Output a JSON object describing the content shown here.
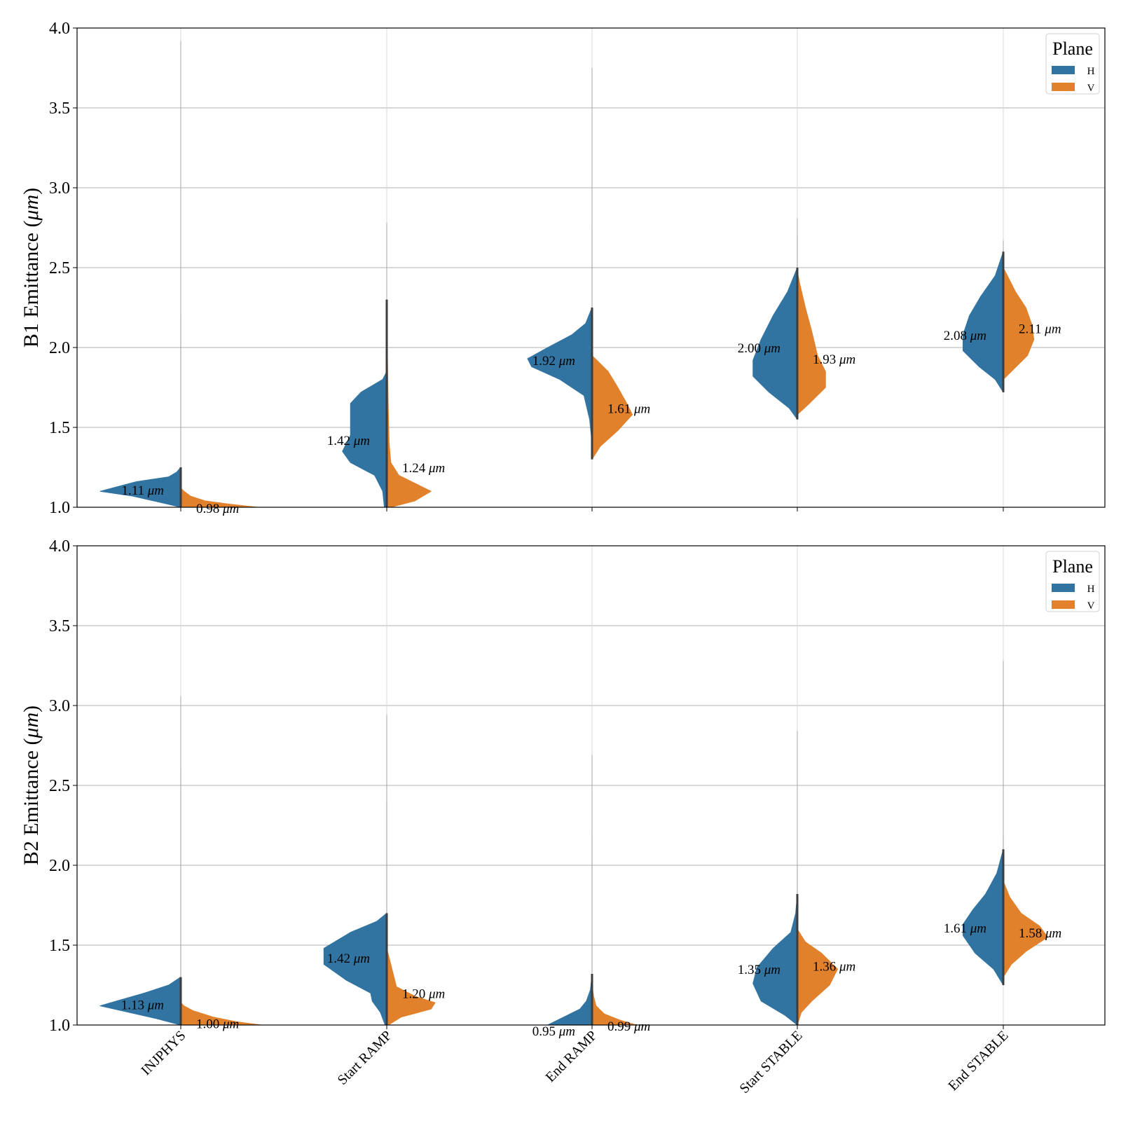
{
  "chart_data": [
    {
      "type": "violin",
      "subtype": "split-violin",
      "panel": "top",
      "title": "",
      "xlabel": "",
      "ylabel": "B1 Emittance",
      "ylabel_unit": "μm",
      "ylim": [
        1.0,
        4.0
      ],
      "yticks": [
        "1.0",
        "1.5",
        "2.0",
        "2.5",
        "3.0",
        "3.5",
        "4.0"
      ],
      "grid": true,
      "show_x_tick_labels": false,
      "categories": [
        "INJPHYS",
        "Start RAMP",
        "End RAMP",
        "Start STABLE",
        "End STABLE"
      ],
      "legend": {
        "title": "Plane",
        "placement": "top-right",
        "entries": [
          "H",
          "V"
        ]
      },
      "series": [
        {
          "name": "H",
          "color": "#3274a1",
          "median_labels": [
            "1.11",
            "1.42",
            "1.92",
            "2.00",
            "2.08"
          ],
          "medians": [
            1.11,
            1.42,
            1.92,
            2.0,
            2.08
          ],
          "label_y": [
            1.11,
            1.42,
            1.92,
            2.0,
            2.08
          ],
          "ranges": [
            [
              1.0,
              1.25
            ],
            [
              1.0,
              1.85
            ],
            [
              1.4,
              2.25
            ],
            [
              1.55,
              2.5
            ],
            [
              1.72,
              2.6
            ]
          ],
          "whisker_max": [
            3.92,
            2.78,
            3.75,
            2.81,
            2.67
          ],
          "density": [
            [
              [
                1.0,
                0.0
              ],
              [
                1.03,
                0.25
              ],
              [
                1.07,
                0.6
              ],
              [
                1.1,
                1.0
              ],
              [
                1.12,
                0.85
              ],
              [
                1.16,
                0.55
              ],
              [
                1.19,
                0.15
              ],
              [
                1.22,
                0.05
              ],
              [
                1.25,
                0.0
              ]
            ],
            [
              [
                1.0,
                0.03
              ],
              [
                1.1,
                0.05
              ],
              [
                1.2,
                0.15
              ],
              [
                1.28,
                0.45
              ],
              [
                1.35,
                0.55
              ],
              [
                1.45,
                0.45
              ],
              [
                1.55,
                0.45
              ],
              [
                1.65,
                0.45
              ],
              [
                1.72,
                0.32
              ],
              [
                1.8,
                0.05
              ],
              [
                1.85,
                0.0
              ]
            ],
            [
              [
                1.4,
                0.0
              ],
              [
                1.55,
                0.03
              ],
              [
                1.7,
                0.1
              ],
              [
                1.8,
                0.4
              ],
              [
                1.88,
                0.75
              ],
              [
                1.93,
                0.8
              ],
              [
                2.0,
                0.55
              ],
              [
                2.08,
                0.25
              ],
              [
                2.15,
                0.08
              ],
              [
                2.25,
                0.0
              ]
            ],
            [
              [
                1.55,
                0.0
              ],
              [
                1.62,
                0.1
              ],
              [
                1.72,
                0.35
              ],
              [
                1.82,
                0.55
              ],
              [
                1.92,
                0.55
              ],
              [
                2.05,
                0.45
              ],
              [
                2.2,
                0.3
              ],
              [
                2.35,
                0.12
              ],
              [
                2.5,
                0.0
              ]
            ],
            [
              [
                1.72,
                0.0
              ],
              [
                1.8,
                0.1
              ],
              [
                1.88,
                0.3
              ],
              [
                1.98,
                0.5
              ],
              [
                2.08,
                0.5
              ],
              [
                2.2,
                0.42
              ],
              [
                2.32,
                0.28
              ],
              [
                2.45,
                0.1
              ],
              [
                2.6,
                0.0
              ]
            ]
          ]
        },
        {
          "name": "V",
          "color": "#e1812c",
          "median_labels": [
            "0.98",
            "1.24",
            "1.61",
            "1.93",
            "2.11"
          ],
          "medians": [
            0.98,
            1.24,
            1.61,
            1.93,
            2.11
          ],
          "label_y": [
            0.995,
            1.25,
            1.62,
            1.93,
            2.12
          ],
          "ranges": [
            [
              1.0,
              1.12
            ],
            [
              1.0,
              2.3
            ],
            [
              1.3,
              1.95
            ],
            [
              1.58,
              2.48
            ],
            [
              1.8,
              2.5
            ]
          ],
          "whisker_max": [
            2.2,
            2.3,
            2.75,
            2.7,
            2.55
          ],
          "density": [
            [
              [
                1.0,
                0.95
              ],
              [
                1.02,
                0.6
              ],
              [
                1.04,
                0.3
              ],
              [
                1.07,
                0.12
              ],
              [
                1.1,
                0.04
              ],
              [
                1.12,
                0.0
              ]
            ],
            [
              [
                1.0,
                0.05
              ],
              [
                1.04,
                0.35
              ],
              [
                1.1,
                0.55
              ],
              [
                1.15,
                0.35
              ],
              [
                1.2,
                0.15
              ],
              [
                1.28,
                0.05
              ],
              [
                1.4,
                0.03
              ],
              [
                1.6,
                0.02
              ],
              [
                1.9,
                0.01
              ],
              [
                2.3,
                0.0
              ]
            ],
            [
              [
                1.3,
                0.0
              ],
              [
                1.38,
                0.1
              ],
              [
                1.48,
                0.32
              ],
              [
                1.58,
                0.5
              ],
              [
                1.66,
                0.42
              ],
              [
                1.75,
                0.32
              ],
              [
                1.85,
                0.2
              ],
              [
                1.95,
                0.0
              ]
            ],
            [
              [
                1.58,
                0.0
              ],
              [
                1.65,
                0.15
              ],
              [
                1.75,
                0.35
              ],
              [
                1.85,
                0.35
              ],
              [
                1.95,
                0.25
              ],
              [
                2.1,
                0.18
              ],
              [
                2.25,
                0.1
              ],
              [
                2.4,
                0.03
              ],
              [
                2.48,
                0.0
              ]
            ],
            [
              [
                1.8,
                0.0
              ],
              [
                1.85,
                0.1
              ],
              [
                1.95,
                0.3
              ],
              [
                2.05,
                0.38
              ],
              [
                2.15,
                0.35
              ],
              [
                2.25,
                0.28
              ],
              [
                2.35,
                0.15
              ],
              [
                2.45,
                0.05
              ],
              [
                2.5,
                0.0
              ]
            ]
          ]
        }
      ]
    },
    {
      "type": "violin",
      "subtype": "split-violin",
      "panel": "bottom",
      "title": "",
      "xlabel": "",
      "ylabel": "B2 Emittance",
      "ylabel_unit": "μm",
      "ylim": [
        1.0,
        4.0
      ],
      "yticks": [
        "1.0",
        "1.5",
        "2.0",
        "2.5",
        "3.0",
        "3.5",
        "4.0"
      ],
      "grid": true,
      "show_x_tick_labels": true,
      "categories": [
        "INJPHYS",
        "Start RAMP",
        "End RAMP",
        "Start STABLE",
        "End STABLE"
      ],
      "legend": {
        "title": "Plane",
        "placement": "top-right",
        "entries": [
          "H",
          "V"
        ]
      },
      "series": [
        {
          "name": "H",
          "color": "#3274a1",
          "median_labels": [
            "1.13",
            "1.42",
            "0.95",
            "1.35",
            "1.61"
          ],
          "medians": [
            1.13,
            1.42,
            0.95,
            1.35,
            1.61
          ],
          "label_y": [
            1.13,
            1.42,
            0.965,
            1.35,
            1.61
          ],
          "ranges": [
            [
              1.0,
              1.3
            ],
            [
              1.0,
              1.7
            ],
            [
              1.0,
              1.32
            ],
            [
              1.0,
              1.82
            ],
            [
              1.25,
              2.1
            ]
          ],
          "whisker_max": [
            3.06,
            2.94,
            2.69,
            2.84,
            3.28
          ],
          "density": [
            [
              [
                1.0,
                0.0
              ],
              [
                1.04,
                0.3
              ],
              [
                1.08,
                0.65
              ],
              [
                1.12,
                1.0
              ],
              [
                1.15,
                0.8
              ],
              [
                1.2,
                0.45
              ],
              [
                1.25,
                0.15
              ],
              [
                1.3,
                0.0
              ]
            ],
            [
              [
                1.0,
                0.02
              ],
              [
                1.08,
                0.08
              ],
              [
                1.15,
                0.18
              ],
              [
                1.2,
                0.2
              ],
              [
                1.28,
                0.5
              ],
              [
                1.38,
                0.78
              ],
              [
                1.48,
                0.78
              ],
              [
                1.58,
                0.45
              ],
              [
                1.65,
                0.12
              ],
              [
                1.7,
                0.0
              ]
            ],
            [
              [
                1.0,
                0.55
              ],
              [
                1.05,
                0.35
              ],
              [
                1.1,
                0.15
              ],
              [
                1.15,
                0.07
              ],
              [
                1.22,
                0.02
              ],
              [
                1.32,
                0.0
              ]
            ],
            [
              [
                1.0,
                0.0
              ],
              [
                1.06,
                0.15
              ],
              [
                1.15,
                0.45
              ],
              [
                1.26,
                0.55
              ],
              [
                1.36,
                0.5
              ],
              [
                1.48,
                0.3
              ],
              [
                1.58,
                0.08
              ],
              [
                1.7,
                0.02
              ],
              [
                1.82,
                0.0
              ]
            ],
            [
              [
                1.25,
                0.0
              ],
              [
                1.35,
                0.12
              ],
              [
                1.45,
                0.35
              ],
              [
                1.56,
                0.5
              ],
              [
                1.63,
                0.5
              ],
              [
                1.72,
                0.38
              ],
              [
                1.82,
                0.22
              ],
              [
                1.95,
                0.08
              ],
              [
                2.1,
                0.0
              ]
            ]
          ]
        },
        {
          "name": "V",
          "color": "#e1812c",
          "median_labels": [
            "1.00",
            "1.20",
            "0.99",
            "1.36",
            "1.58"
          ],
          "medians": [
            1.0,
            1.2,
            0.99,
            1.36,
            1.58
          ],
          "label_y": [
            1.01,
            1.2,
            0.995,
            1.37,
            1.58
          ],
          "ranges": [
            [
              1.0,
              1.14
            ],
            [
              1.0,
              1.48
            ],
            [
              1.0,
              1.25
            ],
            [
              1.0,
              1.6
            ],
            [
              1.3,
              1.9
            ]
          ],
          "whisker_max": [
            2.6,
            2.4,
            2.2,
            2.0,
            2.2
          ],
          "density": [
            [
              [
                1.0,
                1.0
              ],
              [
                1.02,
                0.7
              ],
              [
                1.05,
                0.4
              ],
              [
                1.09,
                0.15
              ],
              [
                1.12,
                0.04
              ],
              [
                1.14,
                0.0
              ]
            ],
            [
              [
                1.0,
                0.02
              ],
              [
                1.05,
                0.18
              ],
              [
                1.1,
                0.55
              ],
              [
                1.14,
                0.6
              ],
              [
                1.18,
                0.35
              ],
              [
                1.24,
                0.12
              ],
              [
                1.32,
                0.08
              ],
              [
                1.4,
                0.04
              ],
              [
                1.48,
                0.0
              ]
            ],
            [
              [
                1.0,
                0.55
              ],
              [
                1.03,
                0.35
              ],
              [
                1.07,
                0.15
              ],
              [
                1.12,
                0.05
              ],
              [
                1.18,
                0.02
              ],
              [
                1.25,
                0.0
              ]
            ],
            [
              [
                1.0,
                0.0
              ],
              [
                1.08,
                0.05
              ],
              [
                1.15,
                0.18
              ],
              [
                1.25,
                0.4
              ],
              [
                1.35,
                0.5
              ],
              [
                1.45,
                0.3
              ],
              [
                1.52,
                0.1
              ],
              [
                1.6,
                0.0
              ]
            ],
            [
              [
                1.3,
                0.0
              ],
              [
                1.38,
                0.1
              ],
              [
                1.46,
                0.28
              ],
              [
                1.55,
                0.55
              ],
              [
                1.62,
                0.45
              ],
              [
                1.7,
                0.22
              ],
              [
                1.8,
                0.08
              ],
              [
                1.9,
                0.0
              ]
            ]
          ]
        }
      ]
    }
  ]
}
